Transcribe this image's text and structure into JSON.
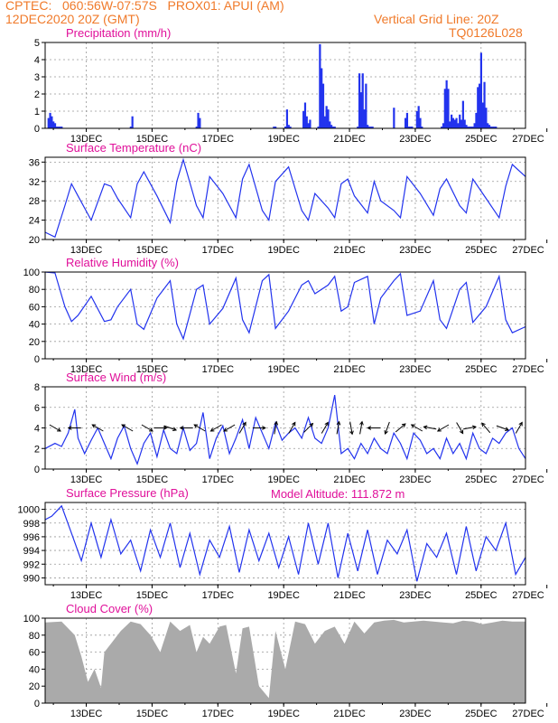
{
  "header": {
    "line1": "CPTEC:   060:56W-07:57S   PROX01: APUI (AM)",
    "line2": "12DEC2020 20Z (GMT)",
    "grid_note": "Vertical Grid Line: 20Z",
    "run_id": "TQ0126L028"
  },
  "model_altitude": "Model Altitude: 111.872 m",
  "colors": {
    "series": "#2233ee",
    "cloud": "#aaaaaa",
    "title": "#e0109a",
    "header": "#f07a2a",
    "arrows": "#000000"
  },
  "chart_data": [
    {
      "type": "bar",
      "title": "Precipitation (mm/h)",
      "x_ticks": [
        "13DEC",
        "15DEC",
        "17DEC",
        "19DEC",
        "21DEC",
        "23DEC",
        "25DEC",
        "27DEC"
      ],
      "xlim": [
        0,
        14.6
      ],
      "ylim": [
        0,
        5
      ],
      "y_ticks": [
        "0",
        "1",
        "2",
        "3",
        "4",
        "5"
      ],
      "grid": true,
      "x": [
        0.1,
        0.15,
        0.2,
        0.25,
        0.3,
        0.35,
        0.4,
        0.45,
        0.5,
        2.6,
        2.65,
        4.6,
        4.65,
        4.7,
        6.95,
        7.0,
        7.3,
        7.35,
        7.4,
        7.45,
        7.85,
        7.9,
        7.95,
        8.0,
        8.05,
        8.3,
        8.35,
        8.4,
        8.45,
        8.5,
        8.55,
        8.6,
        8.65,
        8.7,
        8.75,
        8.8,
        9.5,
        9.55,
        9.6,
        9.65,
        9.7,
        9.75,
        9.8,
        9.85,
        9.9,
        9.95,
        10.6,
        10.95,
        11.0,
        11.05,
        11.1,
        11.15,
        11.3,
        11.35,
        11.4,
        11.45,
        12.05,
        12.1,
        12.15,
        12.2,
        12.25,
        12.3,
        12.35,
        12.4,
        12.45,
        12.5,
        12.55,
        12.6,
        12.65,
        12.7,
        12.75,
        12.8,
        12.85,
        12.9,
        12.95,
        13.0,
        13.05,
        13.1,
        13.15,
        13.2,
        13.25,
        13.3,
        13.35,
        13.4,
        13.45,
        13.5,
        13.55,
        13.6,
        13.65,
        13.7
      ],
      "values": [
        0.6,
        0.9,
        0.7,
        0.4,
        0.3,
        0.1,
        0.1,
        0.1,
        0.1,
        0.1,
        0.7,
        0.1,
        0.9,
        0.6,
        0.1,
        0.1,
        0.1,
        1.1,
        0.2,
        0.1,
        1.0,
        1.5,
        0.7,
        0.3,
        0.5,
        0.1,
        4.9,
        3.5,
        2.6,
        0.7,
        1.3,
        1.1,
        0.4,
        0.2,
        0.1,
        0.1,
        0.1,
        3.2,
        2.1,
        3.2,
        1.1,
        2.6,
        0.2,
        0.1,
        0.1,
        0.1,
        1.2,
        0.6,
        0.9,
        0.1,
        0.1,
        0.1,
        1.0,
        1.3,
        0.6,
        0.1,
        0.1,
        0.3,
        2.3,
        2.8,
        2.3,
        0.4,
        0.8,
        0.6,
        0.5,
        0.6,
        0.3,
        0.8,
        0.5,
        1.6,
        0.5,
        0.2,
        0.1,
        0.1,
        0.1,
        0.1,
        0.3,
        0.9,
        2.4,
        2.6,
        4.4,
        1.5,
        2.7,
        1.2,
        0.3,
        0.2,
        0.1,
        0.1,
        0.1,
        0.1
      ]
    },
    {
      "type": "line",
      "title": "Surface Temperature (nC)",
      "x_ticks": [
        "13DEC",
        "15DEC",
        "17DEC",
        "19DEC",
        "21DEC",
        "23DEC",
        "25DEC",
        "27DEC"
      ],
      "xlim": [
        0,
        14.6
      ],
      "ylim": [
        20,
        37
      ],
      "y_ticks": [
        "20",
        "24",
        "28",
        "32",
        "36"
      ],
      "grid": true,
      "x": [
        0,
        0.3,
        0.6,
        0.8,
        1.0,
        1.4,
        1.8,
        2.0,
        2.2,
        2.6,
        2.8,
        3.0,
        3.4,
        3.8,
        4.0,
        4.2,
        4.6,
        4.8,
        5.0,
        5.4,
        5.8,
        6.0,
        6.2,
        6.6,
        6.8,
        7.0,
        7.4,
        7.8,
        8.0,
        8.2,
        8.6,
        8.8,
        9.0,
        9.2,
        9.4,
        9.8,
        10.0,
        10.2,
        10.6,
        10.8,
        11.0,
        11.4,
        11.8,
        12.0,
        12.2,
        12.6,
        12.8,
        13.0,
        13.4,
        13.8,
        14.0,
        14.2,
        14.6
      ],
      "values": [
        21.5,
        20.5,
        27.0,
        31.5,
        29.0,
        24.0,
        31.5,
        31.0,
        28.5,
        24.5,
        31.5,
        34.0,
        29.0,
        23.5,
        32.0,
        36.5,
        27.0,
        24.5,
        33.0,
        29.5,
        24.5,
        32.5,
        35.5,
        26.0,
        24.0,
        32.0,
        35.0,
        26.0,
        24.0,
        29.5,
        26.5,
        24.5,
        31.5,
        32.5,
        29.0,
        25.5,
        32.0,
        28.0,
        26.0,
        24.5,
        33.0,
        29.5,
        25.0,
        30.5,
        32.5,
        27.0,
        25.5,
        32.5,
        28.5,
        24.5,
        31.0,
        35.5,
        33.0
      ]
    },
    {
      "type": "line",
      "title": "Relative Humidity (%)",
      "x_ticks": [
        "13DEC",
        "15DEC",
        "17DEC",
        "19DEC",
        "21DEC",
        "23DEC",
        "25DEC",
        "27DEC"
      ],
      "xlim": [
        0,
        14.6
      ],
      "ylim": [
        0,
        100
      ],
      "y_ticks": [
        "0",
        "20",
        "40",
        "60",
        "80",
        "100"
      ],
      "grid": true,
      "x": [
        0,
        0.3,
        0.6,
        0.8,
        1.0,
        1.4,
        1.8,
        2.0,
        2.2,
        2.6,
        2.8,
        3.0,
        3.4,
        3.8,
        4.0,
        4.2,
        4.6,
        4.8,
        5.0,
        5.4,
        5.8,
        6.0,
        6.2,
        6.6,
        6.8,
        7.0,
        7.4,
        7.8,
        8.0,
        8.2,
        8.6,
        8.8,
        9.0,
        9.2,
        9.4,
        9.8,
        10.0,
        10.2,
        10.6,
        10.8,
        11.0,
        11.4,
        11.8,
        12.0,
        12.2,
        12.6,
        12.8,
        13.0,
        13.4,
        13.8,
        14.0,
        14.2,
        14.6
      ],
      "values": [
        100,
        99,
        60,
        43,
        50,
        72,
        43,
        45,
        60,
        80,
        40,
        34,
        70,
        90,
        40,
        23,
        80,
        85,
        40,
        58,
        93,
        45,
        30,
        90,
        97,
        35,
        55,
        85,
        90,
        75,
        85,
        95,
        55,
        60,
        88,
        95,
        40,
        70,
        90,
        98,
        50,
        55,
        90,
        45,
        35,
        80,
        88,
        42,
        60,
        95,
        45,
        30,
        37
      ]
    },
    {
      "type": "line",
      "title": "Surface Wind (m/s)",
      "x_ticks": [
        "13DEC",
        "15DEC",
        "17DEC",
        "19DEC",
        "21DEC",
        "23DEC",
        "25DEC",
        "27DEC"
      ],
      "xlim": [
        0,
        14.6
      ],
      "ylim": [
        0,
        8
      ],
      "y_ticks": [
        "0",
        "2",
        "4",
        "6",
        "8"
      ],
      "grid": true,
      "x": [
        0,
        0.3,
        0.5,
        0.7,
        0.9,
        1.0,
        1.2,
        1.4,
        1.6,
        1.8,
        2.0,
        2.2,
        2.4,
        2.6,
        2.8,
        3.0,
        3.2,
        3.4,
        3.6,
        3.8,
        4.0,
        4.2,
        4.4,
        4.6,
        4.8,
        5.0,
        5.2,
        5.4,
        5.6,
        5.8,
        6.0,
        6.2,
        6.4,
        6.6,
        6.8,
        7.0,
        7.2,
        7.4,
        7.6,
        7.8,
        8.0,
        8.2,
        8.4,
        8.6,
        8.8,
        9.0,
        9.2,
        9.4,
        9.6,
        9.8,
        10.0,
        10.2,
        10.4,
        10.6,
        10.8,
        11.0,
        11.2,
        11.4,
        11.6,
        11.8,
        12.0,
        12.2,
        12.4,
        12.6,
        12.8,
        13.0,
        13.2,
        13.4,
        13.6,
        13.8,
        14.0,
        14.2,
        14.4,
        14.6
      ],
      "values": [
        2.0,
        2.5,
        2.2,
        3.5,
        5.8,
        3.0,
        1.5,
        2.8,
        4.0,
        2.5,
        1.0,
        3.0,
        4.2,
        2.0,
        0.5,
        2.5,
        3.5,
        1.2,
        3.8,
        2.0,
        1.5,
        4.0,
        1.8,
        2.5,
        5.5,
        1.0,
        3.0,
        4.2,
        1.5,
        3.0,
        4.8,
        2.0,
        5.0,
        3.5,
        2.0,
        4.5,
        2.8,
        3.5,
        4.0,
        3.0,
        5.0,
        3.0,
        2.5,
        4.0,
        7.2,
        1.5,
        2.0,
        1.0,
        2.5,
        1.5,
        3.0,
        2.0,
        1.5,
        3.5,
        2.5,
        1.0,
        3.5,
        2.8,
        1.5,
        2.0,
        1.0,
        3.0,
        1.5,
        2.5,
        1.0,
        3.5,
        2.0,
        1.5,
        3.0,
        2.5,
        3.5,
        4.0,
        2.0,
        1.0
      ]
    },
    {
      "type": "line",
      "title": "Surface Pressure (hPa)",
      "x_ticks": [
        "13DEC",
        "15DEC",
        "17DEC",
        "19DEC",
        "21DEC",
        "23DEC",
        "25DEC",
        "27DEC"
      ],
      "xlim": [
        0,
        14.6
      ],
      "ylim": [
        989,
        1001
      ],
      "y_ticks": [
        "990",
        "992",
        "994",
        "996",
        "998",
        "1000"
      ],
      "grid": true,
      "x": [
        0,
        0.2,
        0.5,
        0.8,
        1.1,
        1.4,
        1.7,
        2.0,
        2.3,
        2.6,
        2.9,
        3.2,
        3.5,
        3.8,
        4.1,
        4.4,
        4.7,
        5.0,
        5.3,
        5.6,
        5.9,
        6.2,
        6.5,
        6.8,
        7.1,
        7.4,
        7.7,
        8.0,
        8.3,
        8.6,
        8.9,
        9.2,
        9.5,
        9.8,
        10.1,
        10.4,
        10.7,
        11.0,
        11.3,
        11.6,
        11.9,
        12.2,
        12.5,
        12.8,
        13.1,
        13.4,
        13.7,
        14.0,
        14.3,
        14.6
      ],
      "values": [
        998.5,
        999.0,
        1000.5,
        996.5,
        992.5,
        998.0,
        993.0,
        998.5,
        993.5,
        995.5,
        991.0,
        997.0,
        993.0,
        998.0,
        991.5,
        996.5,
        990.5,
        995.5,
        993.0,
        997.5,
        990.8,
        997.0,
        992.5,
        996.5,
        991.5,
        996.0,
        990.5,
        998.0,
        992.0,
        998.0,
        990.0,
        996.5,
        991.0,
        997.0,
        990.5,
        995.5,
        993.5,
        997.0,
        989.5,
        995.0,
        993.0,
        996.5,
        990.5,
        997.5,
        991.0,
        996.0,
        994.0,
        998.0,
        990.5,
        993.0
      ]
    },
    {
      "type": "area",
      "title": "Cloud Cover (%)",
      "x_ticks": [
        "13DEC",
        "15DEC",
        "17DEC",
        "19DEC",
        "21DEC",
        "23DEC",
        "25DEC",
        "27DEC"
      ],
      "xlim": [
        0,
        14.6
      ],
      "ylim": [
        0,
        100
      ],
      "y_ticks": [
        "0",
        "20",
        "40",
        "60",
        "80",
        "100"
      ],
      "grid": true,
      "x": [
        0,
        0.5,
        0.9,
        1.1,
        1.3,
        1.5,
        1.7,
        1.8,
        2.0,
        2.3,
        2.6,
        2.9,
        3.2,
        3.5,
        3.8,
        4.1,
        4.4,
        4.6,
        4.8,
        5.0,
        5.3,
        5.5,
        5.8,
        6.0,
        6.2,
        6.5,
        6.8,
        7.0,
        7.3,
        7.6,
        7.9,
        8.2,
        8.5,
        8.8,
        9.1,
        9.4,
        9.7,
        10.0,
        10.3,
        10.6,
        10.9,
        11.2,
        11.5,
        11.8,
        12.1,
        12.4,
        12.7,
        13.0,
        13.3,
        13.6,
        13.9,
        14.2,
        14.6
      ],
      "values": [
        95,
        96,
        80,
        55,
        25,
        40,
        18,
        60,
        70,
        85,
        96,
        93,
        80,
        60,
        96,
        85,
        92,
        60,
        78,
        70,
        90,
        92,
        35,
        88,
        90,
        20,
        6,
        85,
        40,
        96,
        93,
        70,
        85,
        90,
        70,
        96,
        82,
        95,
        97,
        98,
        95,
        96,
        97,
        96,
        95,
        94,
        97,
        96,
        93,
        95,
        97,
        96,
        96
      ]
    }
  ],
  "wind_arrows": {
    "x": [
      0.3,
      0.9,
      1.6,
      2.5,
      3.1,
      3.5,
      3.8,
      4.3,
      4.7,
      5.2,
      5.6,
      6.0,
      6.5,
      7.0,
      7.5,
      8.0,
      8.5,
      8.9,
      9.3,
      9.6,
      10.0,
      10.4,
      10.8,
      11.3,
      11.7,
      12.1,
      12.6,
      12.9,
      13.4,
      13.9,
      14.4
    ],
    "directions_deg": [
      120,
      270,
      300,
      300,
      120,
      90,
      110,
      270,
      300,
      240,
      240,
      30,
      90,
      10,
      30,
      45,
      30,
      10,
      170,
      10,
      270,
      200,
      50,
      300,
      280,
      240,
      150,
      80,
      320,
      110,
      30
    ]
  }
}
